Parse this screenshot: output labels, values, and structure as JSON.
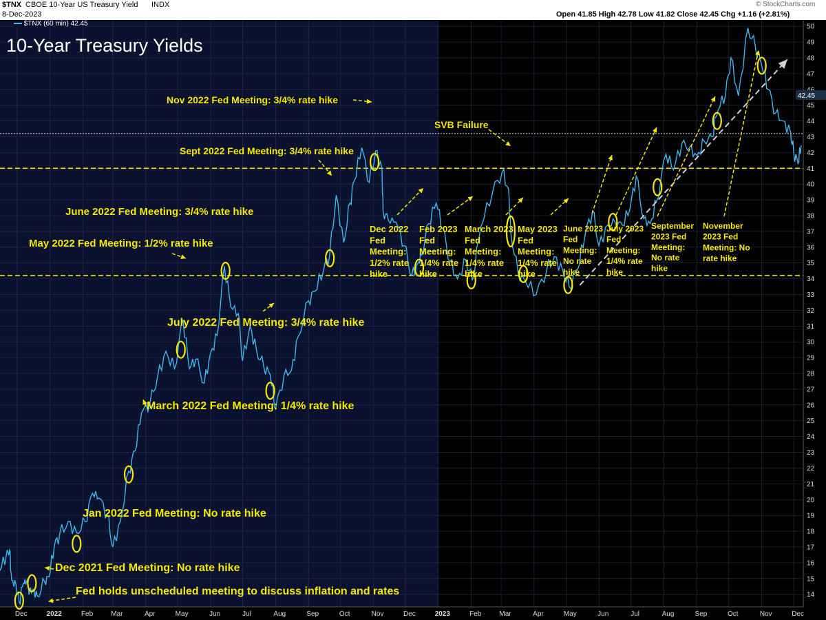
{
  "header": {
    "symbol": "$TNX",
    "description": "CBOE 10-Year US Treasury Yield",
    "exchange": "INDX",
    "date": "8-Dec-2023",
    "series_label": "$TNX (60 min) 42.45",
    "ohlc": "Open 41.85  High 42.78  Low 41.82  Close 42.45  Chg +1.16 (+2.81%)",
    "brand": "© StockCharts.com"
  },
  "colors": {
    "price_line": "#3fb6ec",
    "annotation": "#f5e700",
    "trend_arrow": "#cfcfcf",
    "bg_2022": "#0b1230",
    "bg_2023": "#000000",
    "last_price_badge": "#1b2f46"
  },
  "chart_data": {
    "type": "line",
    "title": "10-Year Treasury Yields",
    "ylim": [
      13.2,
      50.4
    ],
    "y_scale": "linear",
    "y_axis_side": "right",
    "y_ticks": [
      "14",
      "15",
      "16",
      "17",
      "18",
      "19",
      "20",
      "21",
      "22",
      "23",
      "24",
      "25",
      "26",
      "27",
      "28",
      "29",
      "30",
      "31",
      "32",
      "33",
      "34",
      "35",
      "36",
      "37",
      "38",
      "39",
      "40",
      "41",
      "42",
      "43",
      "44",
      "45",
      "46",
      "47",
      "48",
      "49",
      "50"
    ],
    "x_ticks": [
      {
        "label": "Dec",
        "date": "2021-12-01"
      },
      {
        "label": "2022",
        "date": "2022-01-01"
      },
      {
        "label": "Feb",
        "date": "2022-02-01"
      },
      {
        "label": "Mar",
        "date": "2022-03-01"
      },
      {
        "label": "Apr",
        "date": "2022-04-01"
      },
      {
        "label": "May",
        "date": "2022-05-01"
      },
      {
        "label": "Jun",
        "date": "2022-06-01"
      },
      {
        "label": "Jul",
        "date": "2022-07-01"
      },
      {
        "label": "Aug",
        "date": "2022-08-01"
      },
      {
        "label": "Sep",
        "date": "2022-09-01"
      },
      {
        "label": "Oct",
        "date": "2022-10-01"
      },
      {
        "label": "Nov",
        "date": "2022-11-01"
      },
      {
        "label": "Dec",
        "date": "2022-12-01"
      },
      {
        "label": "2023",
        "date": "2023-01-01"
      },
      {
        "label": "Feb",
        "date": "2023-02-01"
      },
      {
        "label": "Mar",
        "date": "2023-03-01"
      },
      {
        "label": "Apr",
        "date": "2023-04-01"
      },
      {
        "label": "May",
        "date": "2023-05-01"
      },
      {
        "label": "Jun",
        "date": "2023-06-01"
      },
      {
        "label": "Jul",
        "date": "2023-07-01"
      },
      {
        "label": "Aug",
        "date": "2023-08-01"
      },
      {
        "label": "Sep",
        "date": "2023-09-01"
      },
      {
        "label": "Oct",
        "date": "2023-10-01"
      },
      {
        "label": "Nov",
        "date": "2023-11-01"
      },
      {
        "label": "Dec",
        "date": "2023-12-01"
      }
    ],
    "last_value": "42.45",
    "horizontal_levels": [
      34.2,
      41.0,
      43.2
    ],
    "series": [
      {
        "name": "$TNX (60 min)",
        "points": [
          [
            "2021-11-15",
            15.5
          ],
          [
            "2021-11-21",
            16.5
          ],
          [
            "2021-11-24",
            16.8
          ],
          [
            "2021-11-26",
            14.9
          ],
          [
            "2021-11-30",
            14.6
          ],
          [
            "2021-12-03",
            13.5
          ],
          [
            "2021-12-07",
            14.7
          ],
          [
            "2021-12-10",
            14.8
          ],
          [
            "2021-12-13",
            14.2
          ],
          [
            "2021-12-16",
            14.3
          ],
          [
            "2021-12-20",
            13.9
          ],
          [
            "2021-12-27",
            14.8
          ],
          [
            "2021-12-31",
            15.1
          ],
          [
            "2022-01-05",
            17.0
          ],
          [
            "2022-01-10",
            17.8
          ],
          [
            "2022-01-18",
            18.6
          ],
          [
            "2022-01-26",
            17.9
          ],
          [
            "2022-02-03",
            18.6
          ],
          [
            "2022-02-10",
            20.4
          ],
          [
            "2022-02-16",
            20.1
          ],
          [
            "2022-02-24",
            19.0
          ],
          [
            "2022-03-01",
            17.0
          ],
          [
            "2022-03-08",
            18.6
          ],
          [
            "2022-03-16",
            21.8
          ],
          [
            "2022-03-22",
            23.1
          ],
          [
            "2022-03-28",
            25.5
          ],
          [
            "2022-04-05",
            26.1
          ],
          [
            "2022-04-12",
            27.8
          ],
          [
            "2022-04-20",
            29.4
          ],
          [
            "2022-04-28",
            28.3
          ],
          [
            "2022-05-06",
            31.4
          ],
          [
            "2022-05-12",
            28.3
          ],
          [
            "2022-05-18",
            28.9
          ],
          [
            "2022-05-26",
            27.4
          ],
          [
            "2022-06-01",
            29.3
          ],
          [
            "2022-06-07",
            30.4
          ],
          [
            "2022-06-14",
            34.8
          ],
          [
            "2022-06-20",
            32.2
          ],
          [
            "2022-06-27",
            31.8
          ],
          [
            "2022-07-01",
            28.8
          ],
          [
            "2022-07-08",
            31.0
          ],
          [
            "2022-07-14",
            29.5
          ],
          [
            "2022-07-21",
            28.4
          ],
          [
            "2022-07-27",
            27.9
          ],
          [
            "2022-08-01",
            25.7
          ],
          [
            "2022-08-09",
            27.9
          ],
          [
            "2022-08-16",
            28.2
          ],
          [
            "2022-08-22",
            30.3
          ],
          [
            "2022-09-01",
            32.6
          ],
          [
            "2022-09-07",
            33.2
          ],
          [
            "2022-09-15",
            34.5
          ],
          [
            "2022-09-21",
            35.6
          ],
          [
            "2022-09-27",
            39.3
          ],
          [
            "2022-10-04",
            36.3
          ],
          [
            "2022-10-10",
            38.8
          ],
          [
            "2022-10-14",
            40.2
          ],
          [
            "2022-10-21",
            42.3
          ],
          [
            "2022-10-28",
            40.1
          ],
          [
            "2022-11-03",
            42.1
          ],
          [
            "2022-11-09",
            41.0
          ],
          [
            "2022-11-10",
            38.3
          ],
          [
            "2022-11-15",
            37.7
          ],
          [
            "2022-11-22",
            37.6
          ],
          [
            "2022-11-30",
            36.1
          ],
          [
            "2022-12-07",
            34.2
          ],
          [
            "2022-12-13",
            35.0
          ],
          [
            "2022-12-16",
            35.5
          ],
          [
            "2022-12-23",
            37.5
          ],
          [
            "2022-12-30",
            38.8
          ],
          [
            "2023-01-05",
            37.2
          ],
          [
            "2023-01-12",
            35.1
          ],
          [
            "2023-01-19",
            34.0
          ],
          [
            "2023-01-27",
            35.2
          ],
          [
            "2023-02-02",
            33.9
          ],
          [
            "2023-02-10",
            37.3
          ],
          [
            "2023-02-21",
            39.5
          ],
          [
            "2023-03-02",
            40.8
          ],
          [
            "2023-03-08",
            39.7
          ],
          [
            "2023-03-10",
            37.0
          ],
          [
            "2023-03-17",
            34.3
          ],
          [
            "2023-03-24",
            33.8
          ],
          [
            "2023-04-03",
            33.0
          ],
          [
            "2023-04-13",
            34.6
          ],
          [
            "2023-04-20",
            35.4
          ],
          [
            "2023-04-28",
            34.5
          ],
          [
            "2023-05-04",
            33.5
          ],
          [
            "2023-05-12",
            34.6
          ],
          [
            "2023-05-19",
            36.8
          ],
          [
            "2023-05-26",
            38.3
          ],
          [
            "2023-06-01",
            36.1
          ],
          [
            "2023-06-09",
            37.4
          ],
          [
            "2023-06-16",
            37.6
          ],
          [
            "2023-06-23",
            37.4
          ],
          [
            "2023-06-30",
            38.4
          ],
          [
            "2023-07-06",
            40.5
          ],
          [
            "2023-07-13",
            37.8
          ],
          [
            "2023-07-19",
            37.5
          ],
          [
            "2023-07-25",
            38.9
          ],
          [
            "2023-08-03",
            41.9
          ],
          [
            "2023-08-10",
            40.9
          ],
          [
            "2023-08-18",
            42.6
          ],
          [
            "2023-08-25",
            42.3
          ],
          [
            "2023-09-01",
            41.8
          ],
          [
            "2023-09-08",
            42.7
          ],
          [
            "2023-09-15",
            43.0
          ],
          [
            "2023-09-21",
            44.7
          ],
          [
            "2023-09-28",
            45.7
          ],
          [
            "2023-10-03",
            48.0
          ],
          [
            "2023-10-10",
            45.6
          ],
          [
            "2023-10-19",
            49.9
          ],
          [
            "2023-10-26",
            48.7
          ],
          [
            "2023-11-01",
            47.5
          ],
          [
            "2023-11-07",
            46.0
          ],
          [
            "2023-11-14",
            44.5
          ],
          [
            "2023-11-21",
            44.0
          ],
          [
            "2023-11-28",
            43.3
          ],
          [
            "2023-12-01",
            42.0
          ],
          [
            "2023-12-05",
            41.3
          ],
          [
            "2023-12-08",
            42.45
          ]
        ]
      }
    ],
    "annotations": [
      {
        "id": "ann-unscheduled",
        "lines": [
          "Fed holds unscheduled meeting to discuss inflation and rates"
        ],
        "date": "2021-12-03",
        "value": 13.6
      },
      {
        "id": "ann-dec-2021",
        "lines": [
          "Dec 2021 Fed Meeting: No rate hike"
        ],
        "date": "2021-12-15",
        "value": 14.7
      },
      {
        "id": "ann-jan-2022",
        "lines": [
          "Jan 2022 Fed Meeting: No rate hike"
        ],
        "date": "2022-01-26",
        "value": 17.2
      },
      {
        "id": "ann-mar-2022",
        "lines": [
          "March 2022 Fed Meeting: 1/4% rate hike"
        ],
        "date": "2022-03-16",
        "value": 21.6
      },
      {
        "id": "ann-may-2022",
        "lines": [
          "May 2022 Fed Meeting: 1/2% rate hike"
        ],
        "date": "2022-05-04",
        "value": 29.5
      },
      {
        "id": "ann-jun-2022",
        "lines": [
          "June 2022 Fed Meeting: 3/4% rate hike"
        ],
        "date": "2022-06-15",
        "value": 34.5
      },
      {
        "id": "ann-jul-2022",
        "lines": [
          "July 2022 Fed Meeting: 3/4% rate hike"
        ],
        "date": "2022-07-27",
        "value": 26.9
      },
      {
        "id": "ann-sep-2022",
        "lines": [
          "Sept 2022 Fed Meeting: 3/4% rate hike"
        ],
        "date": "2022-09-21",
        "value": 35.3
      },
      {
        "id": "ann-nov-2022",
        "lines": [
          "Nov 2022 Fed Meeting: 3/4% rate hike"
        ],
        "date": "2022-11-02",
        "value": 41.4
      },
      {
        "id": "ann-dec-2022",
        "lines": [
          "Dec 2022",
          "Fed",
          "Meeting:",
          "1/2% rate",
          "hike"
        ],
        "date": "2022-12-14",
        "value": 34.7
      },
      {
        "id": "ann-feb-2023",
        "lines": [
          "Feb 2023",
          "Fed",
          "Meeting:",
          "1/4% rate",
          "hike"
        ],
        "date": "2023-02-01",
        "value": 33.9
      },
      {
        "id": "ann-svb",
        "lines": [
          "SVB Failure"
        ],
        "date": "2023-03-10",
        "value": 37.0
      },
      {
        "id": "ann-mar-2023",
        "lines": [
          "March 2023",
          "Fed",
          "Meeting:",
          "1/4% rate",
          "hike"
        ],
        "date": "2023-03-22",
        "value": 34.3
      },
      {
        "id": "ann-may-2023",
        "lines": [
          "May 2023",
          "Fed",
          "Meeting:",
          "1/4% rate",
          "hike"
        ],
        "date": "2023-05-03",
        "value": 33.6
      },
      {
        "id": "ann-jun-2023",
        "lines": [
          "June 2023",
          "Fed",
          "Meeting:",
          "No rate",
          "hike"
        ],
        "date": "2023-06-14",
        "value": 37.6
      },
      {
        "id": "ann-jul-2023",
        "lines": [
          "July 2023",
          "Fed",
          "Meeting:",
          "1/4% rate",
          "hike"
        ],
        "date": "2023-07-26",
        "value": 39.8
      },
      {
        "id": "ann-sep-2023",
        "lines": [
          "September",
          "2023 Fed",
          "Meeting:",
          "No rate",
          "hike"
        ],
        "date": "2023-09-20",
        "value": 44.0
      },
      {
        "id": "ann-nov-2023",
        "lines": [
          "November",
          "2023 Fed",
          "Meeting: No",
          "rate hike"
        ],
        "date": "2023-11-01",
        "value": 47.5
      }
    ],
    "trend_arrow": {
      "from": [
        "2023-05-14",
        33.6
      ],
      "to": [
        "2023-11-25",
        47.9
      ]
    }
  }
}
